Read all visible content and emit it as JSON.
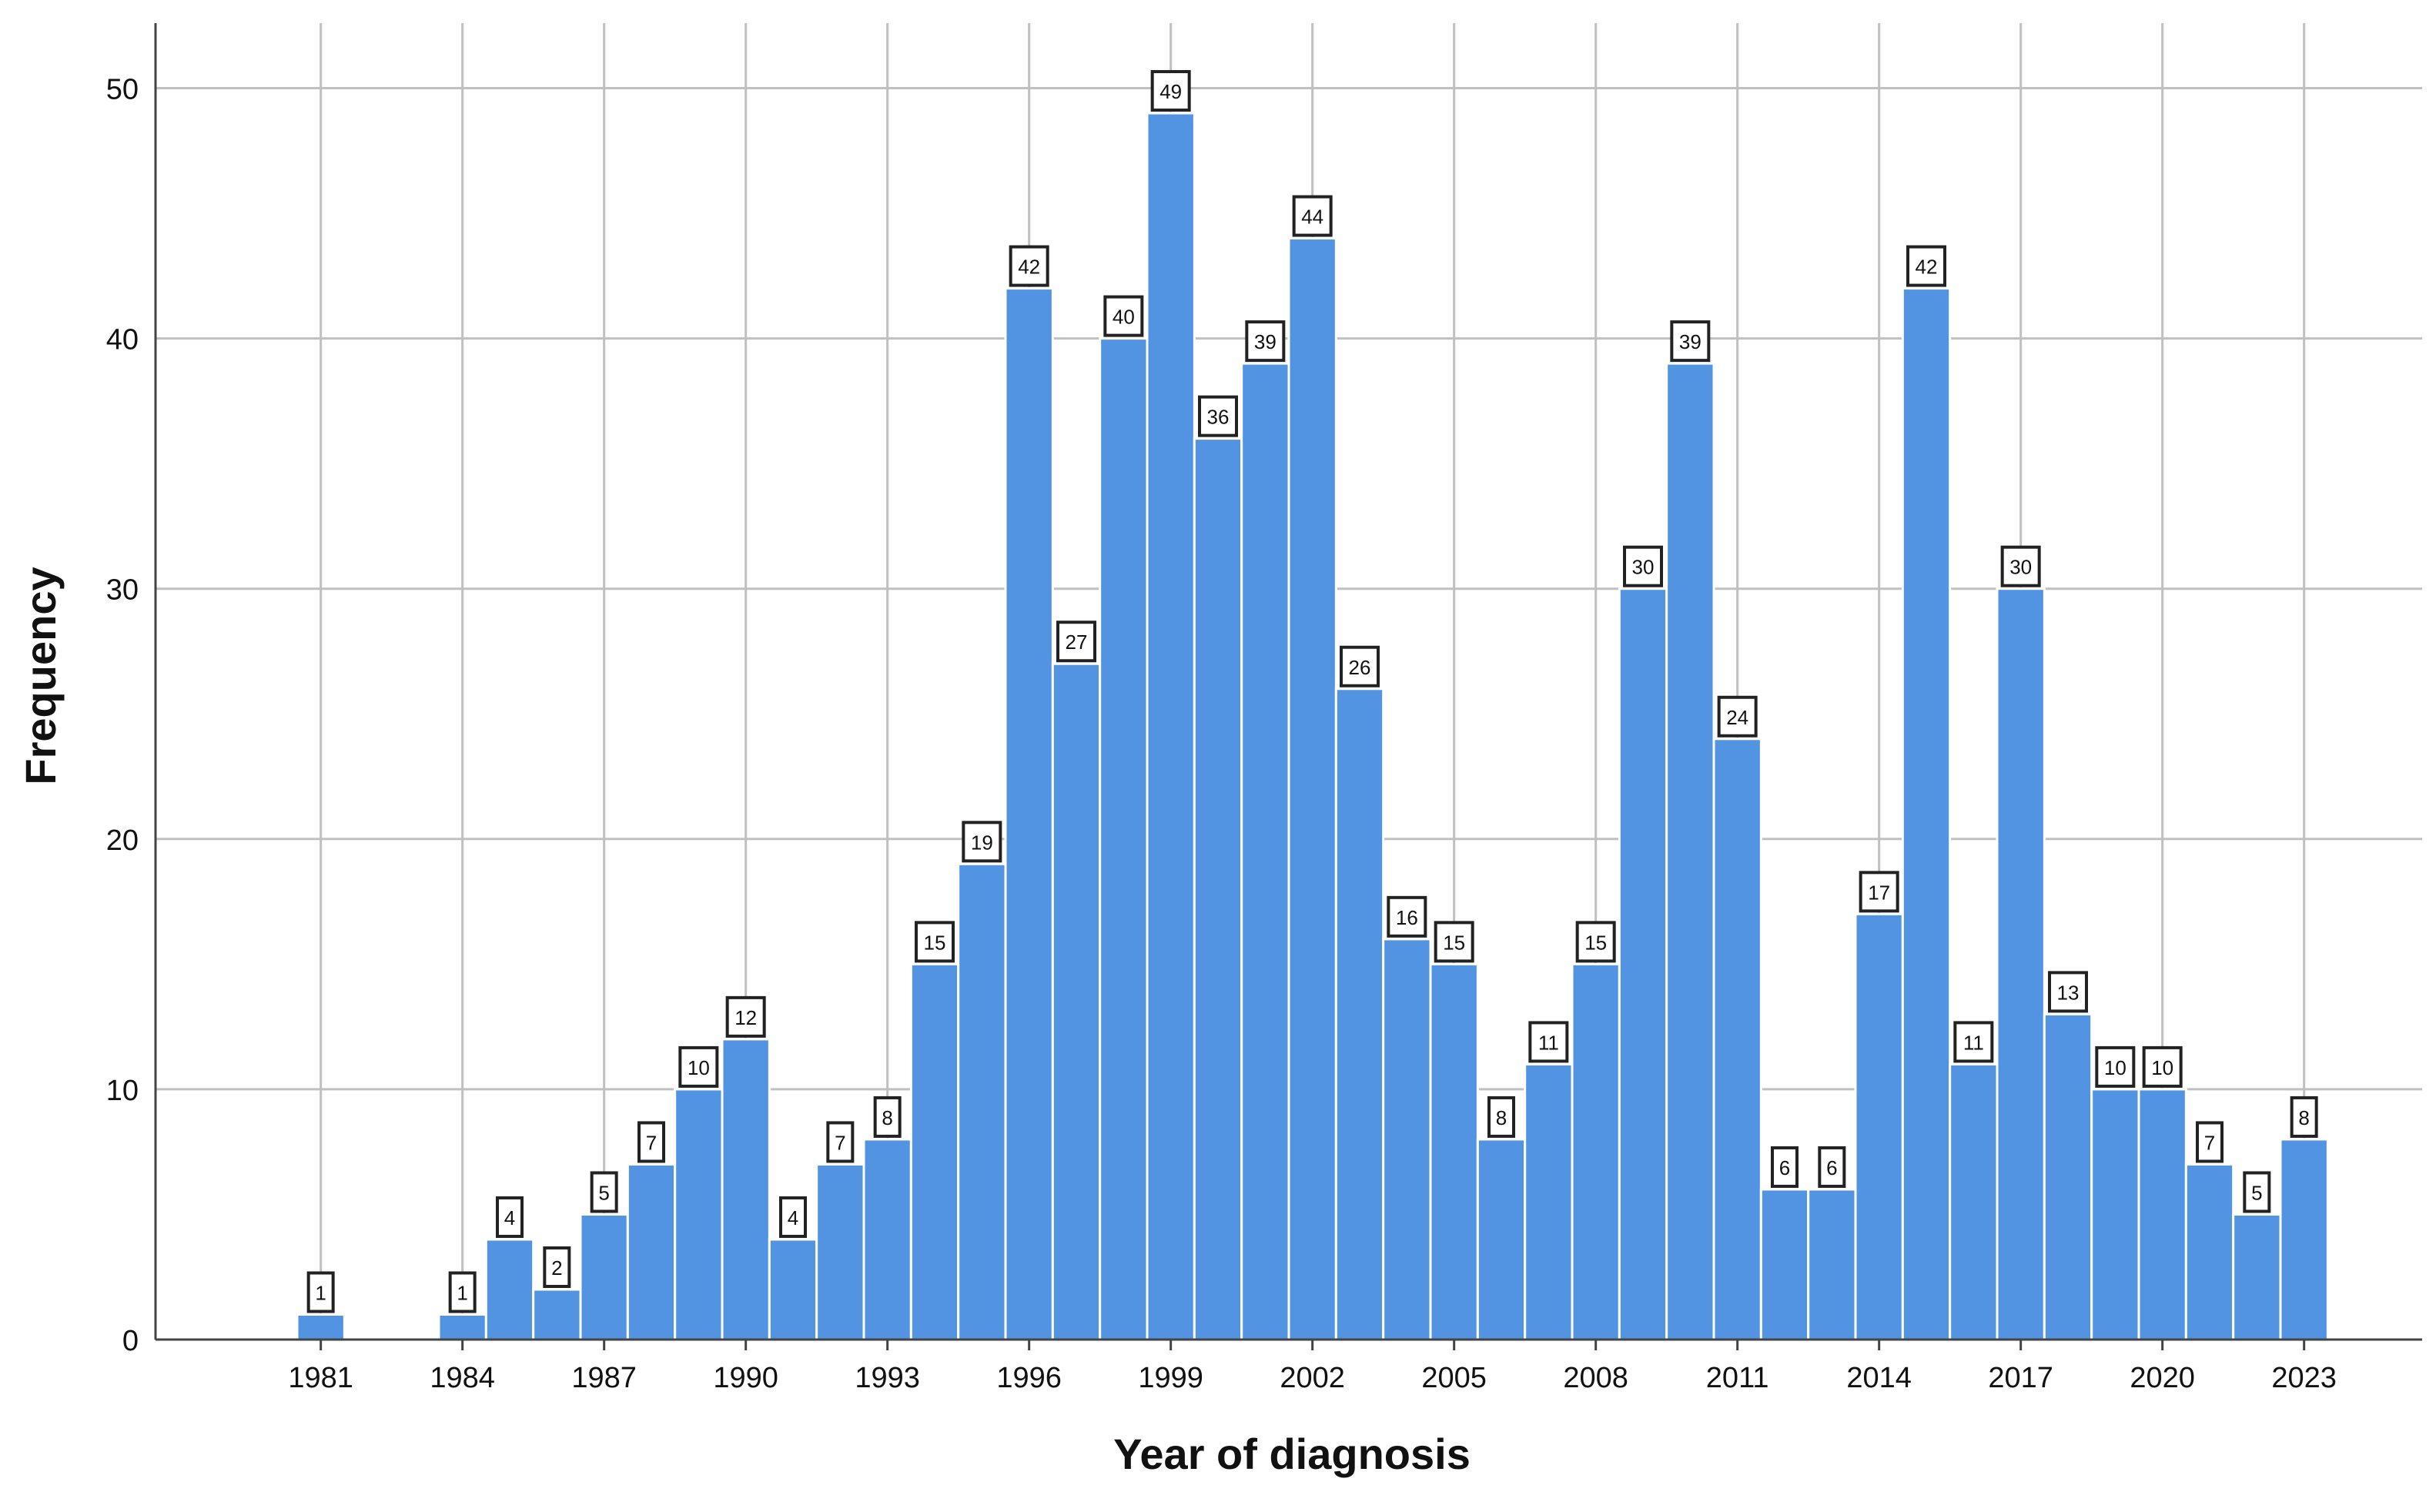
{
  "chart_data": {
    "type": "bar",
    "title": "",
    "xlabel": "Year of diagnosis",
    "ylabel": "Frequency",
    "x": [
      1981,
      1982,
      1983,
      1984,
      1985,
      1986,
      1987,
      1988,
      1989,
      1990,
      1991,
      1992,
      1993,
      1994,
      1995,
      1996,
      1997,
      1998,
      1999,
      2000,
      2001,
      2002,
      2003,
      2004,
      2005,
      2006,
      2007,
      2008,
      2009,
      2010,
      2011,
      2012,
      2013,
      2014,
      2015,
      2016,
      2017,
      2018,
      2019,
      2020,
      2021,
      2022,
      2023
    ],
    "values": [
      1,
      0,
      0,
      1,
      4,
      2,
      5,
      7,
      10,
      12,
      4,
      7,
      8,
      15,
      19,
      42,
      27,
      40,
      49,
      36,
      39,
      44,
      26,
      16,
      15,
      8,
      11,
      15,
      30,
      39,
      24,
      6,
      6,
      17,
      42,
      11,
      30,
      13,
      10,
      10,
      7,
      5,
      8
    ],
    "data_labels": [
      "1",
      "",
      "",
      "1",
      "4",
      "2",
      "5",
      "7",
      "10",
      "12",
      "4",
      "7",
      "8",
      "15",
      "19",
      "42",
      "27",
      "40",
      "49",
      "36",
      "39",
      "44",
      "26",
      "16",
      "15",
      "8",
      "11",
      "15",
      "30",
      "39",
      "24",
      "6",
      "6",
      "17",
      "42",
      "11",
      "30",
      "13",
      "10",
      "10",
      "7",
      "5",
      "8"
    ],
    "x_ticks": [
      "1981",
      "1984",
      "1987",
      "1990",
      "1993",
      "1996",
      "1999",
      "2002",
      "2005",
      "2008",
      "2011",
      "2014",
      "2017",
      "2020",
      "2023"
    ],
    "y_ticks": [
      "0",
      "10",
      "20",
      "30",
      "40",
      "50"
    ],
    "xlim": [
      1977.5,
      2025.5
    ],
    "ylim": [
      0,
      52.6
    ],
    "grid": true,
    "colors": {
      "bar_fill": "#5294e2",
      "bar_edge": "#ffffff",
      "grid": "#c0c0c0",
      "axis": "#444444",
      "text": "#111111"
    }
  }
}
